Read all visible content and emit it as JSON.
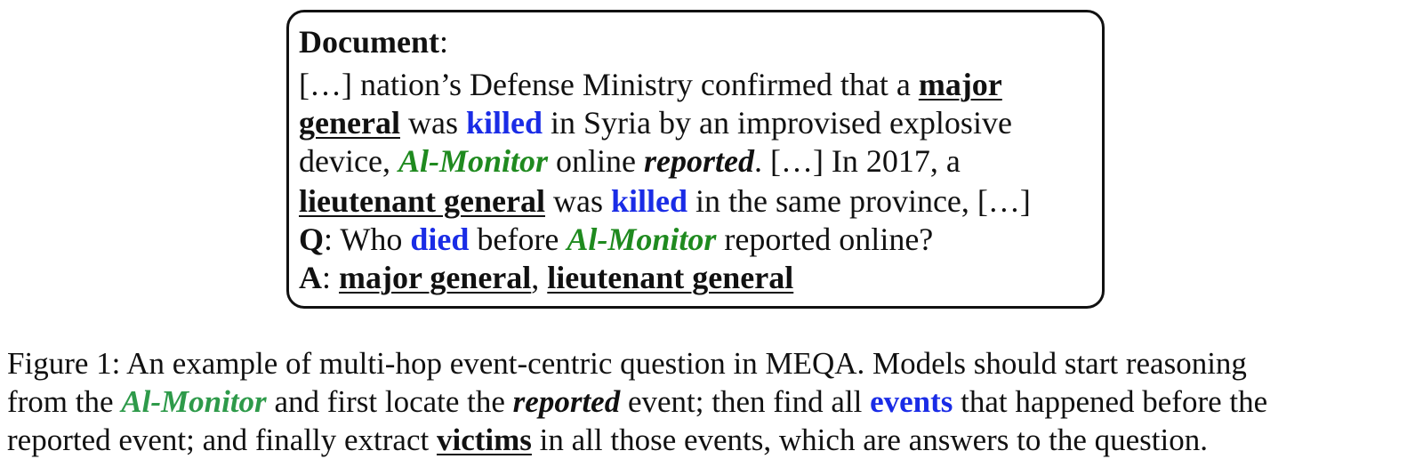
{
  "box": {
    "doc_label": "Document",
    "colon": ":",
    "line1": {
      "pre": "[…] nation’s Defense Ministry confirmed that a ",
      "arg": "major"
    },
    "line2": {
      "arg": "general",
      "mid1": " was ",
      "trigger": "killed",
      "post": " in Syria by an improvised explosive"
    },
    "line3": {
      "pre": "device, ",
      "entity": "Al-Monitor",
      "mid": " online ",
      "reported": "reported",
      "post": ". […] In 2017, a"
    },
    "line4": {
      "arg": "lieutenant general",
      "mid": " was ",
      "trigger": "killed",
      "post": " in the same province, […]"
    },
    "q": {
      "label": "Q",
      "colon": ": ",
      "pre": "Who ",
      "trigger": "died",
      "mid": " before ",
      "entity": "Al-Monitor",
      "post": " reported online?"
    },
    "a": {
      "label": "A",
      "colon": ": ",
      "ans1": "major general",
      "sep": ", ",
      "ans2": "lieutenant general"
    }
  },
  "caption": {
    "line1": "Figure 1: An example of multi-hop event-centric question in MEQA. Models should start reasoning",
    "line2": {
      "pre": "from the ",
      "entity": "Al-Monitor",
      "mid1": " and first locate the ",
      "reported": "reported",
      "mid2": " event; then find all ",
      "events": "events",
      "post": " that happened before the"
    },
    "line3": {
      "pre": "reported event; and finally extract ",
      "victims": "victims",
      "post": " in all those events, which are answers to the question."
    }
  },
  "colors": {
    "trigger": "#1a2ce6",
    "entity": "#1f8a1f",
    "text": "#111111"
  }
}
